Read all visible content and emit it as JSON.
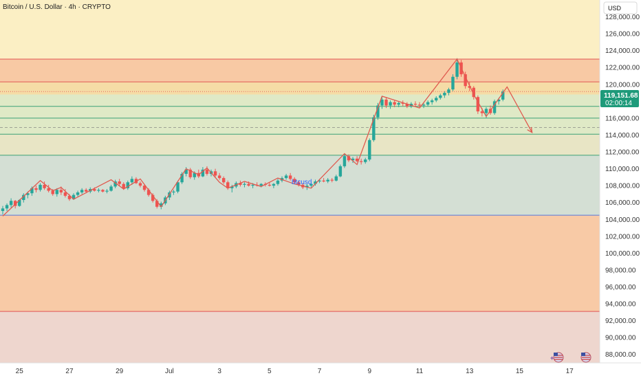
{
  "header": {
    "title": "Bitcoin / U.S. Dollar · 4h · CRYPTO",
    "currency": "USD",
    "symbol_label": "btcusd"
  },
  "colors": {
    "background": "#fbefc4",
    "zone_top": "#f8c9a4",
    "zone_band": "#f5dca6",
    "zone_green": "#dfe9c6",
    "zone_mid": "#e8e5c5",
    "zone_grey": "#d4dfd4",
    "zone_lower": "#f8caa6",
    "zone_bottom": "#eed6ce",
    "line_red": "#e05454",
    "line_green": "#3aa176",
    "line_blue": "#5577dd",
    "up": "#26a69a",
    "down": "#ef5350",
    "path": "#e05a4f",
    "price_badge": "#1e9a7a"
  },
  "price": {
    "current": "119,151.68",
    "countdown": "02:00:14",
    "level": 119151.68
  },
  "chart_data": {
    "type": "candlestick",
    "title": "Bitcoin / U.S. Dollar · 4h · CRYPTO",
    "xlabel": "",
    "ylabel": "",
    "ylim": [
      87000,
      130000
    ],
    "y_ticks": [
      "128,000.00",
      "126,000.00",
      "124,000.00",
      "122,000.00",
      "120,000.00",
      "118,000.00",
      "116,000.00",
      "114,000.00",
      "112,000.00",
      "110,000.00",
      "108,000.00",
      "106,000.00",
      "104,000.00",
      "102,000.00",
      "100,000.00",
      "98,000.00",
      "96,000.00",
      "94,000.00",
      "92,000.00",
      "90,000.00",
      "88,000.00"
    ],
    "x_ticks": [
      {
        "label": "25",
        "i": 2
      },
      {
        "label": "27",
        "i": 14
      },
      {
        "label": "29",
        "i": 26
      },
      {
        "label": "Jul",
        "i": 38
      },
      {
        "label": "3",
        "i": 50
      },
      {
        "label": "5",
        "i": 62
      },
      {
        "label": "7",
        "i": 74
      },
      {
        "label": "9",
        "i": 86
      },
      {
        "label": "11",
        "i": 98
      },
      {
        "label": "13",
        "i": 110
      },
      {
        "label": "15",
        "i": 122
      },
      {
        "label": "17",
        "i": 134
      }
    ],
    "zones": [
      {
        "from": 123000,
        "to": 120300,
        "color": "zone_top"
      },
      {
        "from": 120300,
        "to": 118800,
        "color": "zone_band"
      },
      {
        "from": 118800,
        "to": 114100,
        "color": "zone_green"
      },
      {
        "from": 114100,
        "to": 111600,
        "color": "zone_mid"
      },
      {
        "from": 111600,
        "to": 104500,
        "color": "zone_grey"
      },
      {
        "from": 104500,
        "to": 93100,
        "color": "zone_lower"
      },
      {
        "from": 93100,
        "to": 87000,
        "color": "zone_bottom"
      }
    ],
    "levels": [
      {
        "value": 123000,
        "color": "line_red"
      },
      {
        "value": 120300,
        "color": "line_red"
      },
      {
        "value": 117400,
        "color": "line_green"
      },
      {
        "value": 116000,
        "color": "line_green"
      },
      {
        "value": 114100,
        "color": "line_green"
      },
      {
        "value": 111600,
        "color": "line_green"
      },
      {
        "value": 104500,
        "color": "line_blue"
      },
      {
        "value": 93100,
        "color": "line_red"
      }
    ],
    "candles": [
      {
        "i": 0,
        "o": 105000,
        "h": 105600,
        "l": 104600,
        "c": 105300
      },
      {
        "i": 1,
        "o": 105300,
        "h": 105900,
        "l": 105000,
        "c": 105700
      },
      {
        "i": 2,
        "o": 105700,
        "h": 106500,
        "l": 105400,
        "c": 106200
      },
      {
        "i": 3,
        "o": 106200,
        "h": 106300,
        "l": 105300,
        "c": 105600
      },
      {
        "i": 4,
        "o": 105600,
        "h": 106400,
        "l": 105500,
        "c": 106300
      },
      {
        "i": 5,
        "o": 106300,
        "h": 107100,
        "l": 106000,
        "c": 106900
      },
      {
        "i": 6,
        "o": 106900,
        "h": 107300,
        "l": 106500,
        "c": 107100
      },
      {
        "i": 7,
        "o": 107100,
        "h": 107900,
        "l": 106800,
        "c": 107700
      },
      {
        "i": 8,
        "o": 107700,
        "h": 108000,
        "l": 107200,
        "c": 107500
      },
      {
        "i": 9,
        "o": 107500,
        "h": 108300,
        "l": 107300,
        "c": 108100
      },
      {
        "i": 10,
        "o": 108100,
        "h": 108500,
        "l": 107500,
        "c": 107700
      },
      {
        "i": 11,
        "o": 107700,
        "h": 108100,
        "l": 107200,
        "c": 107400
      },
      {
        "i": 12,
        "o": 107400,
        "h": 107600,
        "l": 106800,
        "c": 107000
      },
      {
        "i": 13,
        "o": 107000,
        "h": 107700,
        "l": 106700,
        "c": 107500
      },
      {
        "i": 14,
        "o": 107500,
        "h": 107900,
        "l": 106900,
        "c": 107200
      },
      {
        "i": 15,
        "o": 107200,
        "h": 107600,
        "l": 106600,
        "c": 106800
      },
      {
        "i": 16,
        "o": 106800,
        "h": 107000,
        "l": 106200,
        "c": 106400
      },
      {
        "i": 17,
        "o": 106400,
        "h": 107100,
        "l": 106300,
        "c": 106900
      },
      {
        "i": 18,
        "o": 106900,
        "h": 107400,
        "l": 106700,
        "c": 107200
      },
      {
        "i": 19,
        "o": 107200,
        "h": 107700,
        "l": 107000,
        "c": 107500
      },
      {
        "i": 20,
        "o": 107500,
        "h": 107700,
        "l": 107100,
        "c": 107300
      },
      {
        "i": 21,
        "o": 107300,
        "h": 107800,
        "l": 107100,
        "c": 107600
      },
      {
        "i": 22,
        "o": 107600,
        "h": 107800,
        "l": 107300,
        "c": 107400
      },
      {
        "i": 23,
        "o": 107400,
        "h": 107700,
        "l": 107200,
        "c": 107500
      },
      {
        "i": 24,
        "o": 107500,
        "h": 107600,
        "l": 107200,
        "c": 107300
      },
      {
        "i": 25,
        "o": 107300,
        "h": 107600,
        "l": 107100,
        "c": 107400
      },
      {
        "i": 26,
        "o": 107400,
        "h": 108100,
        "l": 107300,
        "c": 107900
      },
      {
        "i": 27,
        "o": 107900,
        "h": 108700,
        "l": 107700,
        "c": 108500
      },
      {
        "i": 28,
        "o": 108500,
        "h": 108800,
        "l": 108000,
        "c": 108200
      },
      {
        "i": 29,
        "o": 108200,
        "h": 108400,
        "l": 107500,
        "c": 107700
      },
      {
        "i": 30,
        "o": 107700,
        "h": 108600,
        "l": 107500,
        "c": 108400
      },
      {
        "i": 31,
        "o": 108400,
        "h": 109100,
        "l": 108100,
        "c": 108800
      },
      {
        "i": 32,
        "o": 108800,
        "h": 109000,
        "l": 108200,
        "c": 108300
      },
      {
        "i": 33,
        "o": 108300,
        "h": 108500,
        "l": 107800,
        "c": 108000
      },
      {
        "i": 34,
        "o": 108000,
        "h": 108200,
        "l": 107300,
        "c": 107500
      },
      {
        "i": 35,
        "o": 107500,
        "h": 107700,
        "l": 106700,
        "c": 106900
      },
      {
        "i": 36,
        "o": 106900,
        "h": 107100,
        "l": 106000,
        "c": 106200
      },
      {
        "i": 37,
        "o": 106200,
        "h": 106400,
        "l": 105300,
        "c": 105500
      },
      {
        "i": 38,
        "o": 105500,
        "h": 106100,
        "l": 105200,
        "c": 105900
      },
      {
        "i": 39,
        "o": 105900,
        "h": 106800,
        "l": 105700,
        "c": 106600
      },
      {
        "i": 40,
        "o": 106600,
        "h": 107400,
        "l": 106300,
        "c": 107200
      },
      {
        "i": 41,
        "o": 107200,
        "h": 107500,
        "l": 106900,
        "c": 107300
      },
      {
        "i": 42,
        "o": 107300,
        "h": 108600,
        "l": 107100,
        "c": 108400
      },
      {
        "i": 43,
        "o": 108400,
        "h": 109600,
        "l": 108200,
        "c": 109400
      },
      {
        "i": 44,
        "o": 109400,
        "h": 110200,
        "l": 109100,
        "c": 109900
      },
      {
        "i": 45,
        "o": 109900,
        "h": 110100,
        "l": 108800,
        "c": 109000
      },
      {
        "i": 46,
        "o": 109000,
        "h": 109700,
        "l": 108700,
        "c": 109500
      },
      {
        "i": 47,
        "o": 109500,
        "h": 109900,
        "l": 108900,
        "c": 109100
      },
      {
        "i": 48,
        "o": 109100,
        "h": 110200,
        "l": 109000,
        "c": 109900
      },
      {
        "i": 49,
        "o": 109900,
        "h": 110300,
        "l": 109200,
        "c": 109400
      },
      {
        "i": 50,
        "o": 109400,
        "h": 109900,
        "l": 109100,
        "c": 109700
      },
      {
        "i": 51,
        "o": 109700,
        "h": 110000,
        "l": 109000,
        "c": 109200
      },
      {
        "i": 52,
        "o": 109200,
        "h": 109500,
        "l": 108700,
        "c": 108900
      },
      {
        "i": 53,
        "o": 108900,
        "h": 109100,
        "l": 108200,
        "c": 108400
      },
      {
        "i": 54,
        "o": 108400,
        "h": 108600,
        "l": 107500,
        "c": 107700
      },
      {
        "i": 55,
        "o": 107700,
        "h": 108100,
        "l": 107200,
        "c": 107900
      },
      {
        "i": 56,
        "o": 107900,
        "h": 108500,
        "l": 107700,
        "c": 108300
      },
      {
        "i": 57,
        "o": 108300,
        "h": 108600,
        "l": 107900,
        "c": 108100
      },
      {
        "i": 58,
        "o": 108100,
        "h": 108400,
        "l": 107800,
        "c": 108200
      },
      {
        "i": 59,
        "o": 108200,
        "h": 108500,
        "l": 107900,
        "c": 108000
      },
      {
        "i": 60,
        "o": 108000,
        "h": 108300,
        "l": 107700,
        "c": 108100
      },
      {
        "i": 61,
        "o": 108100,
        "h": 108400,
        "l": 107900,
        "c": 108000
      },
      {
        "i": 62,
        "o": 108000,
        "h": 108300,
        "l": 107800,
        "c": 108200
      },
      {
        "i": 63,
        "o": 108200,
        "h": 108400,
        "l": 107900,
        "c": 108100
      },
      {
        "i": 64,
        "o": 108100,
        "h": 108400,
        "l": 107900,
        "c": 108000
      },
      {
        "i": 65,
        "o": 108000,
        "h": 108300,
        "l": 107700,
        "c": 108200
      },
      {
        "i": 66,
        "o": 108200,
        "h": 108800,
        "l": 108000,
        "c": 108600
      },
      {
        "i": 67,
        "o": 108600,
        "h": 109100,
        "l": 108400,
        "c": 108900
      },
      {
        "i": 68,
        "o": 108900,
        "h": 109400,
        "l": 108700,
        "c": 109200
      },
      {
        "i": 69,
        "o": 109200,
        "h": 109500,
        "l": 108600,
        "c": 108800
      },
      {
        "i": 70,
        "o": 108800,
        "h": 109000,
        "l": 108200,
        "c": 108400
      },
      {
        "i": 71,
        "o": 108400,
        "h": 108600,
        "l": 107900,
        "c": 108100
      },
      {
        "i": 72,
        "o": 108100,
        "h": 108300,
        "l": 107600,
        "c": 107800
      },
      {
        "i": 73,
        "o": 107800,
        "h": 108200,
        "l": 107500,
        "c": 108000
      },
      {
        "i": 74,
        "o": 108000,
        "h": 108400,
        "l": 107800,
        "c": 108200
      },
      {
        "i": 75,
        "o": 108200,
        "h": 108700,
        "l": 108000,
        "c": 108500
      },
      {
        "i": 76,
        "o": 108500,
        "h": 108800,
        "l": 108300,
        "c": 108600
      },
      {
        "i": 77,
        "o": 108600,
        "h": 108900,
        "l": 108400,
        "c": 108500
      },
      {
        "i": 78,
        "o": 108500,
        "h": 108900,
        "l": 108300,
        "c": 108700
      },
      {
        "i": 79,
        "o": 108700,
        "h": 108900,
        "l": 108400,
        "c": 108600
      },
      {
        "i": 80,
        "o": 108600,
        "h": 109300,
        "l": 108500,
        "c": 109100
      },
      {
        "i": 81,
        "o": 109100,
        "h": 110500,
        "l": 109000,
        "c": 110300
      },
      {
        "i": 82,
        "o": 110300,
        "h": 111800,
        "l": 110100,
        "c": 111500
      },
      {
        "i": 83,
        "o": 111500,
        "h": 111700,
        "l": 110800,
        "c": 111000
      },
      {
        "i": 84,
        "o": 111000,
        "h": 111400,
        "l": 110700,
        "c": 111200
      },
      {
        "i": 85,
        "o": 111200,
        "h": 111500,
        "l": 110800,
        "c": 110900
      },
      {
        "i": 86,
        "o": 110900,
        "h": 111200,
        "l": 110500,
        "c": 110800
      },
      {
        "i": 87,
        "o": 110800,
        "h": 111300,
        "l": 110600,
        "c": 111100
      },
      {
        "i": 88,
        "o": 111100,
        "h": 113600,
        "l": 110900,
        "c": 113400
      },
      {
        "i": 89,
        "o": 113400,
        "h": 116400,
        "l": 113200,
        "c": 116100
      },
      {
        "i": 90,
        "o": 116100,
        "h": 117800,
        "l": 115800,
        "c": 117500
      },
      {
        "i": 91,
        "o": 117500,
        "h": 118600,
        "l": 117100,
        "c": 118200
      },
      {
        "i": 92,
        "o": 118200,
        "h": 118500,
        "l": 117200,
        "c": 117500
      },
      {
        "i": 93,
        "o": 117500,
        "h": 118100,
        "l": 117100,
        "c": 117900
      },
      {
        "i": 94,
        "o": 117900,
        "h": 118100,
        "l": 117300,
        "c": 117600
      },
      {
        "i": 95,
        "o": 117600,
        "h": 118000,
        "l": 117300,
        "c": 117800
      },
      {
        "i": 96,
        "o": 117800,
        "h": 118100,
        "l": 117400,
        "c": 117700
      },
      {
        "i": 97,
        "o": 117700,
        "h": 117900,
        "l": 117200,
        "c": 117400
      },
      {
        "i": 98,
        "o": 117400,
        "h": 117900,
        "l": 117200,
        "c": 117700
      },
      {
        "i": 99,
        "o": 117700,
        "h": 118000,
        "l": 117400,
        "c": 117600
      },
      {
        "i": 100,
        "o": 117600,
        "h": 117900,
        "l": 117300,
        "c": 117500
      },
      {
        "i": 101,
        "o": 117500,
        "h": 117800,
        "l": 117200,
        "c": 117600
      },
      {
        "i": 102,
        "o": 117600,
        "h": 118100,
        "l": 117400,
        "c": 117900
      },
      {
        "i": 103,
        "o": 117900,
        "h": 118300,
        "l": 117600,
        "c": 118100
      },
      {
        "i": 104,
        "o": 118100,
        "h": 118600,
        "l": 117900,
        "c": 118400
      },
      {
        "i": 105,
        "o": 118400,
        "h": 118900,
        "l": 118200,
        "c": 118700
      },
      {
        "i": 106,
        "o": 118700,
        "h": 119200,
        "l": 118400,
        "c": 119000
      },
      {
        "i": 107,
        "o": 119000,
        "h": 119600,
        "l": 118700,
        "c": 119400
      },
      {
        "i": 108,
        "o": 119400,
        "h": 121200,
        "l": 119200,
        "c": 120900
      },
      {
        "i": 109,
        "o": 120900,
        "h": 123100,
        "l": 120600,
        "c": 122600
      },
      {
        "i": 110,
        "o": 122600,
        "h": 122900,
        "l": 120900,
        "c": 121200
      },
      {
        "i": 111,
        "o": 121200,
        "h": 121500,
        "l": 119500,
        "c": 119800
      },
      {
        "i": 112,
        "o": 119800,
        "h": 120300,
        "l": 119200,
        "c": 119600
      },
      {
        "i": 113,
        "o": 119600,
        "h": 119800,
        "l": 118200,
        "c": 118500
      },
      {
        "i": 114,
        "o": 118500,
        "h": 118700,
        "l": 116500,
        "c": 116800
      },
      {
        "i": 115,
        "o": 116800,
        "h": 117200,
        "l": 116200,
        "c": 116600
      },
      {
        "i": 116,
        "o": 116600,
        "h": 117300,
        "l": 116000,
        "c": 117100
      },
      {
        "i": 117,
        "o": 117100,
        "h": 117500,
        "l": 116400,
        "c": 116600
      },
      {
        "i": 118,
        "o": 116600,
        "h": 118200,
        "l": 116400,
        "c": 118000
      },
      {
        "i": 119,
        "o": 118000,
        "h": 118400,
        "l": 117600,
        "c": 118200
      },
      {
        "i": 120,
        "o": 118200,
        "h": 119400,
        "l": 118000,
        "c": 119150
      }
    ],
    "path_points": [
      [
        0,
        104400
      ],
      [
        9,
        108600
      ],
      [
        12,
        107400
      ],
      [
        14,
        107800
      ],
      [
        17,
        106400
      ],
      [
        26,
        108700
      ],
      [
        29,
        107600
      ],
      [
        33,
        108800
      ],
      [
        38,
        105500
      ],
      [
        44,
        110000
      ],
      [
        47,
        109300
      ],
      [
        49,
        110100
      ],
      [
        52,
        108400
      ],
      [
        54,
        107700
      ],
      [
        58,
        108500
      ],
      [
        62,
        107900
      ],
      [
        66,
        108900
      ],
      [
        70,
        108200
      ],
      [
        74,
        107700
      ],
      [
        82,
        111800
      ],
      [
        85,
        110500
      ],
      [
        91,
        118600
      ],
      [
        100,
        117200
      ],
      [
        109,
        123000
      ],
      [
        113,
        118800
      ],
      [
        116,
        116200
      ],
      [
        121,
        119700
      ],
      [
        127,
        114300
      ]
    ],
    "arrow_from": [
      124,
      116500
    ],
    "arrow_to": [
      127,
      114300
    ]
  }
}
